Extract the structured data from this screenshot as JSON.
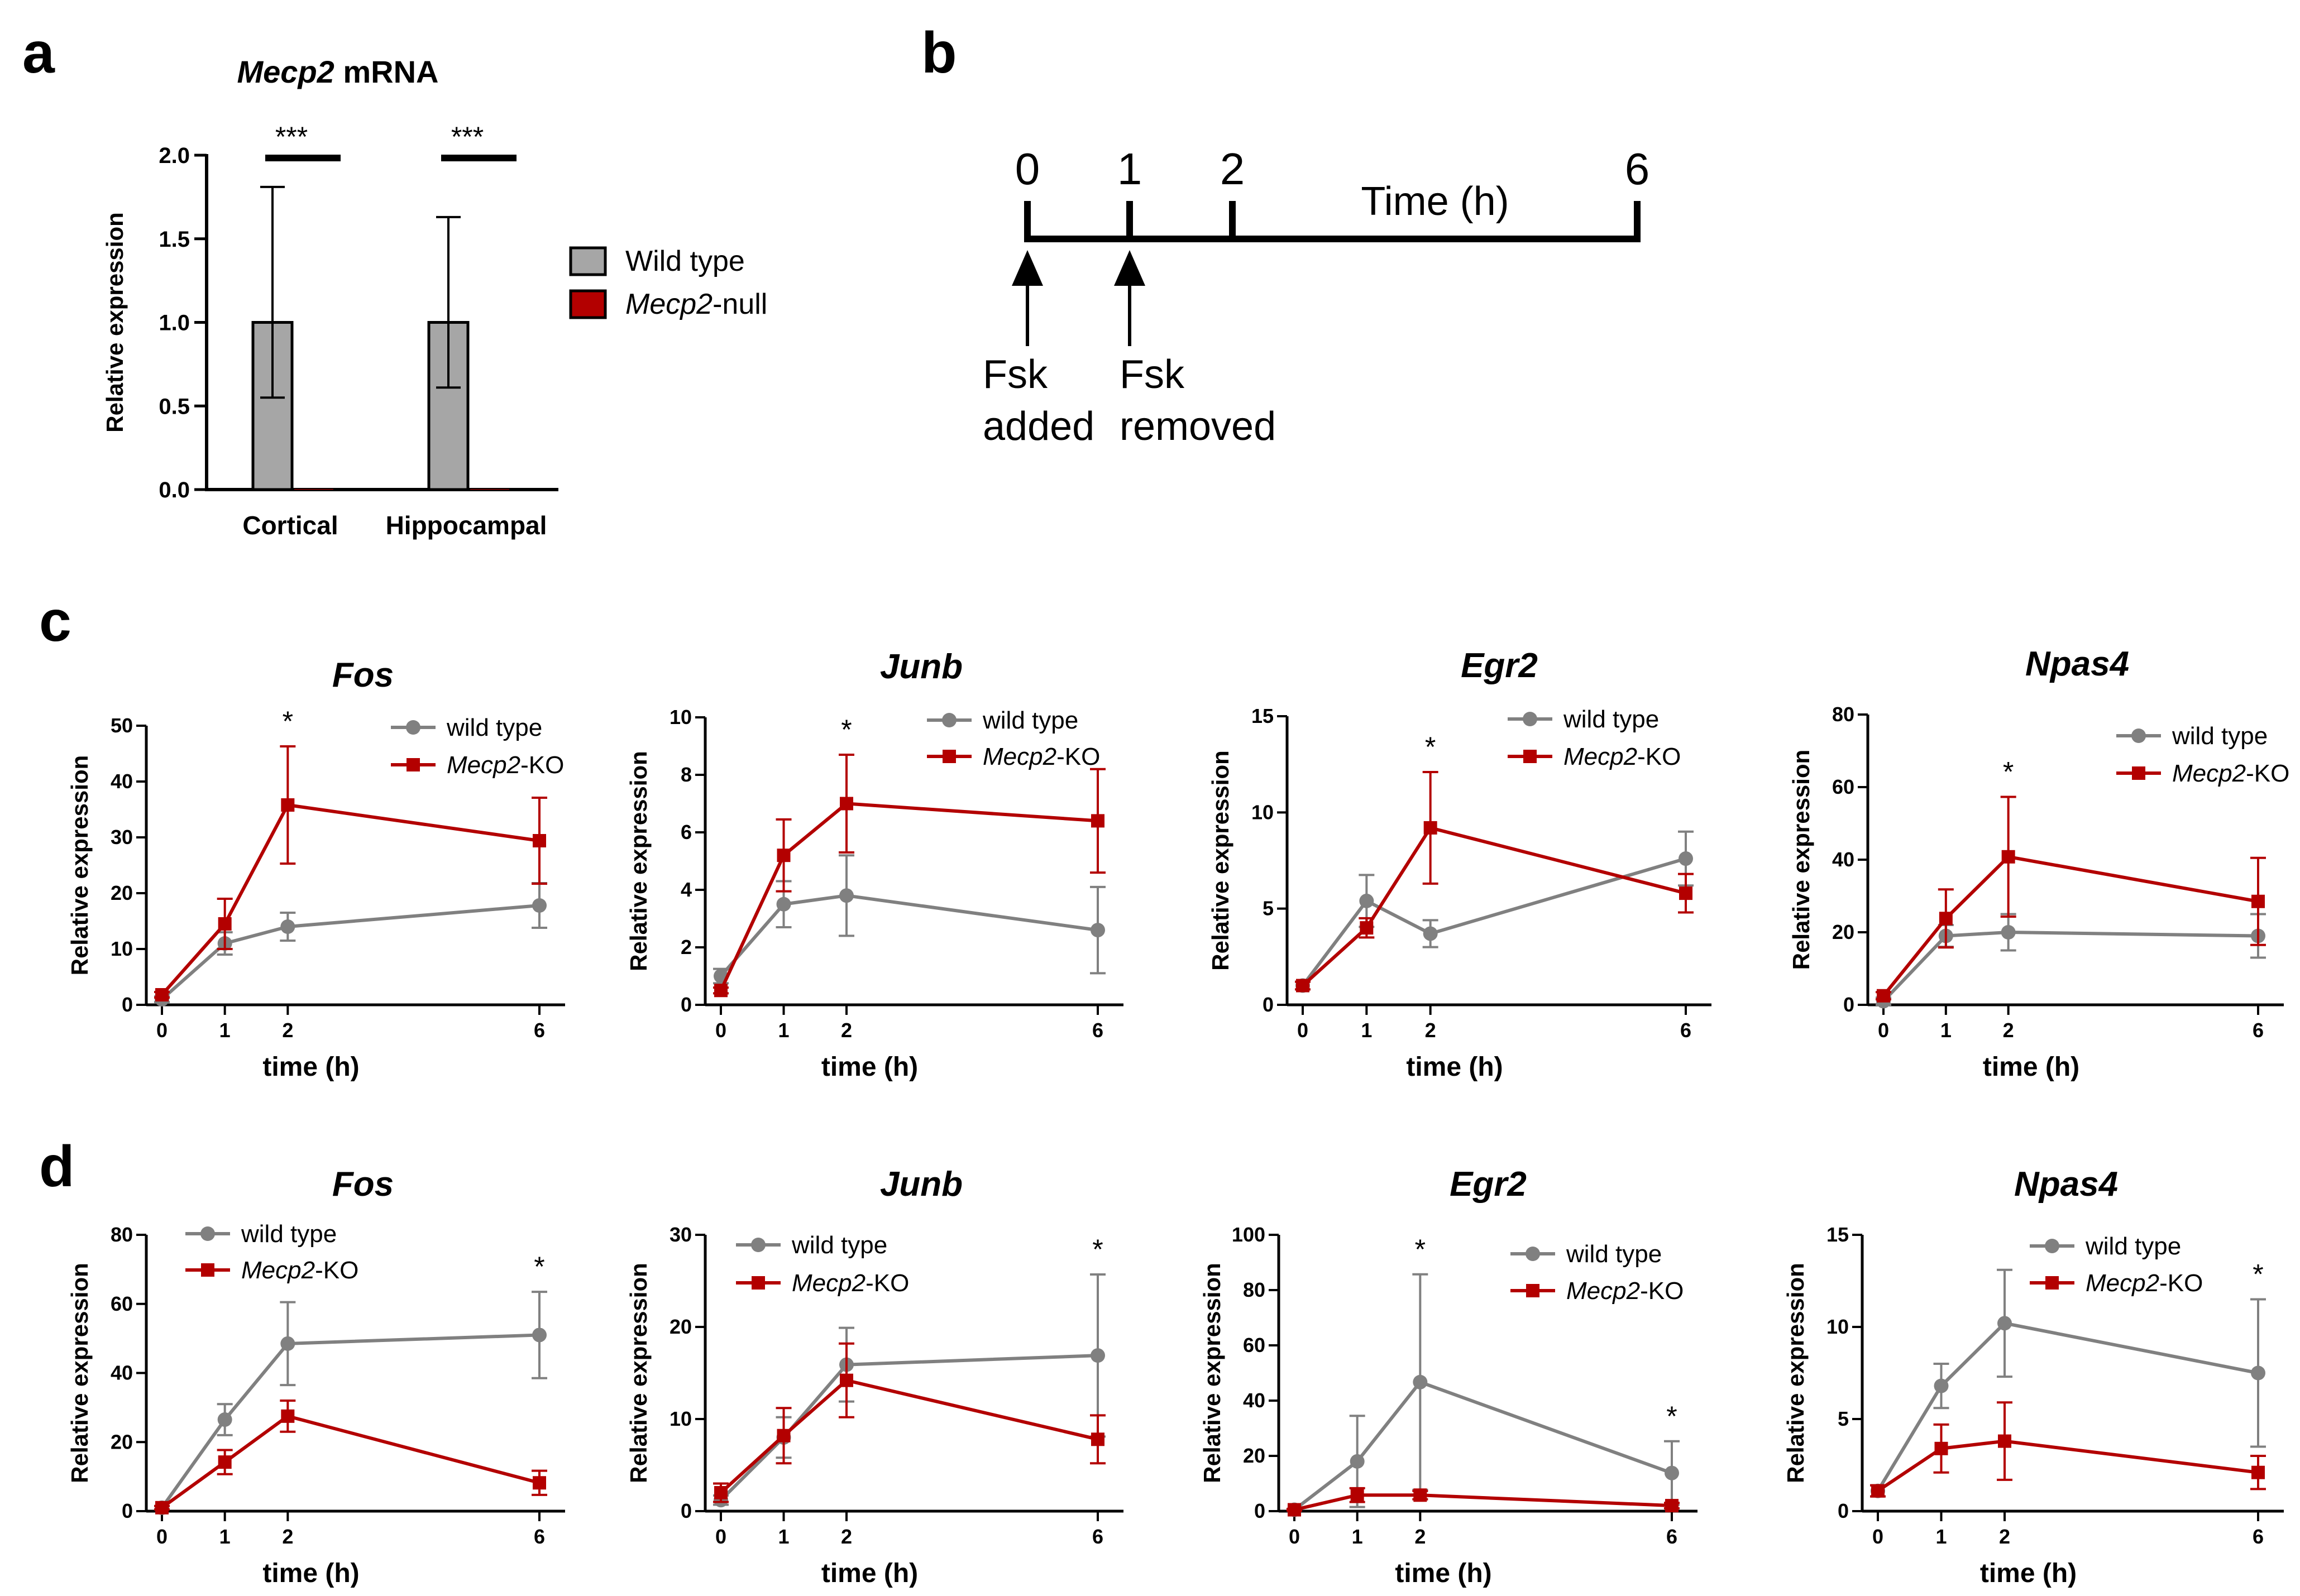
{
  "panel_a": {
    "letter": "a",
    "title_italic": "Mecp2",
    "title_rest": " mRNA",
    "ylabel": "Relative expression",
    "legend": [
      {
        "label": "Wild type",
        "color": "#a6a6a6"
      },
      {
        "label_italic": "Mecp2",
        "label_rest": "-null",
        "color": "#b30000"
      }
    ],
    "significance": [
      "***",
      "***"
    ]
  },
  "panel_b": {
    "letter": "b",
    "time_points": [
      "0",
      "1",
      "2",
      "6"
    ],
    "axis_label": "Time (h)",
    "arrow_labels": [
      {
        "line1": "Fsk",
        "line2": "added"
      },
      {
        "line1": "Fsk",
        "line2": "removed"
      }
    ]
  },
  "panel_c": {
    "letter": "c"
  },
  "panel_d": {
    "letter": "d"
  },
  "colors": {
    "wild_type": "#808080",
    "ko": "#b30000",
    "bar_wt": "#a6a6a6"
  },
  "chart_data": [
    {
      "id": "a",
      "type": "bar",
      "title": "Mecp2 mRNA",
      "categories": [
        "Cortical",
        "Hippocampal"
      ],
      "ylabel": "Relative expression",
      "xlabel": "",
      "ylim": [
        0,
        2.0
      ],
      "yticks": [
        "0.0",
        "0.5",
        "1.0",
        "1.5",
        "2.0"
      ],
      "series": [
        {
          "name": "Wild type",
          "values": [
            1.0,
            1.0
          ],
          "err_low": [
            0.55,
            0.61
          ],
          "err_high": [
            1.81,
            1.63
          ]
        },
        {
          "name": "Mecp2-null",
          "values": [
            0.0,
            0.0
          ]
        }
      ],
      "annotations": [
        "***",
        "***"
      ]
    },
    {
      "id": "c1",
      "type": "line",
      "title": "Fos",
      "x": [
        0,
        1,
        2,
        6
      ],
      "xticks": [
        "0",
        "1",
        "2",
        "6"
      ],
      "xlabel": "time (h)",
      "ylabel": "Relative expression",
      "ylim": [
        0,
        50
      ],
      "yticks": [
        "0",
        "10",
        "20",
        "30",
        "40",
        "50"
      ],
      "legend_x": "top-right",
      "series": [
        {
          "name": "wild type",
          "values": [
            1,
            11,
            14,
            17.8
          ],
          "err": [
            0.5,
            2,
            2.5,
            4
          ]
        },
        {
          "name": "Mecp2-KO",
          "values": [
            1.8,
            14.5,
            35.8,
            29.4
          ],
          "err": [
            0.5,
            4.5,
            10.5,
            7.7
          ]
        }
      ],
      "stars": [
        {
          "x": 2,
          "label": "*"
        }
      ]
    },
    {
      "id": "c2",
      "type": "line",
      "title": "Junb",
      "x": [
        0,
        1,
        2,
        6
      ],
      "xticks": [
        "0",
        "1",
        "2",
        "6"
      ],
      "xlabel": "time (h)",
      "ylabel": "Relative expression",
      "ylim": [
        0,
        10
      ],
      "yticks": [
        "0",
        "2",
        "4",
        "6",
        "8",
        "10"
      ],
      "series": [
        {
          "name": "wild type",
          "values": [
            1.0,
            3.5,
            3.8,
            2.6
          ],
          "err": [
            0.25,
            0.8,
            1.4,
            1.5
          ]
        },
        {
          "name": "Mecp2-KO",
          "values": [
            0.5,
            5.2,
            7.0,
            6.4
          ],
          "err": [
            0.1,
            1.25,
            1.7,
            1.8
          ]
        }
      ],
      "stars": [
        {
          "x": 2,
          "label": "*"
        }
      ]
    },
    {
      "id": "c3",
      "type": "line",
      "title": "Egr2",
      "x": [
        0,
        1,
        2,
        6
      ],
      "xticks": [
        "0",
        "1",
        "2",
        "6"
      ],
      "xlabel": "time (h)",
      "ylabel": "Relative expression",
      "ylim": [
        0,
        15
      ],
      "yticks": [
        "0",
        "5",
        "10",
        "15"
      ],
      "series": [
        {
          "name": "wild type",
          "values": [
            1.0,
            5.4,
            3.7,
            7.6
          ],
          "err": [
            0.2,
            1.35,
            0.7,
            1.4
          ]
        },
        {
          "name": "Mecp2-KO",
          "values": [
            1.0,
            4.0,
            9.2,
            5.8
          ],
          "err": [
            0.2,
            0.5,
            2.9,
            1.0
          ]
        }
      ],
      "stars": [
        {
          "x": 2,
          "label": "*"
        }
      ]
    },
    {
      "id": "c4",
      "type": "line",
      "title": "Npas4",
      "x": [
        0,
        1,
        2,
        6
      ],
      "xticks": [
        "0",
        "1",
        "2",
        "6"
      ],
      "xlabel": "time (h)",
      "ylabel": "Relative expression",
      "ylim": [
        0,
        80
      ],
      "yticks": [
        "0",
        "20",
        "40",
        "60",
        "80"
      ],
      "series": [
        {
          "name": "wild type",
          "values": [
            1,
            19,
            20,
            19
          ],
          "err": [
            1,
            3,
            5,
            6
          ]
        },
        {
          "name": "Mecp2-KO",
          "values": [
            2.5,
            23.8,
            40.8,
            28.5
          ],
          "err": [
            1,
            8,
            16.5,
            12
          ]
        }
      ],
      "stars": [
        {
          "x": 2,
          "label": "*"
        }
      ]
    },
    {
      "id": "d1",
      "type": "line",
      "title": "Fos",
      "x": [
        0,
        1,
        2,
        6
      ],
      "xticks": [
        "0",
        "1",
        "2",
        "6"
      ],
      "xlabel": "time (h)",
      "ylabel": "Relative expression",
      "ylim": [
        0,
        80
      ],
      "yticks": [
        "0",
        "20",
        "40",
        "60",
        "80"
      ],
      "series": [
        {
          "name": "wild type",
          "values": [
            1,
            26.5,
            48.5,
            51
          ],
          "err": [
            0.5,
            4.5,
            12,
            12.5
          ]
        },
        {
          "name": "Mecp2-KO",
          "values": [
            1,
            14.2,
            27.5,
            8.2
          ],
          "err": [
            0.5,
            3.5,
            4.5,
            3.5
          ]
        }
      ],
      "stars": [
        {
          "x": 6,
          "label": "*"
        }
      ]
    },
    {
      "id": "d2",
      "type": "line",
      "title": "Junb",
      "x": [
        0,
        1,
        2,
        6
      ],
      "xticks": [
        "0",
        "1",
        "2",
        "6"
      ],
      "xlabel": "time (h)",
      "ylabel": "Relative expression",
      "ylim": [
        0,
        30
      ],
      "yticks": [
        "0",
        "10",
        "20",
        "30"
      ],
      "series": [
        {
          "name": "wild type",
          "values": [
            1.2,
            8.0,
            15.9,
            16.9
          ],
          "err": [
            0.5,
            2.2,
            4.0,
            8.8
          ]
        },
        {
          "name": "Mecp2-KO",
          "values": [
            2.0,
            8.2,
            14.2,
            7.8
          ],
          "err": [
            1.0,
            3.0,
            4.0,
            2.6
          ]
        }
      ],
      "stars": [
        {
          "x": 6,
          "label": "*"
        }
      ]
    },
    {
      "id": "d3",
      "type": "line",
      "title": "Egr2",
      "x": [
        0,
        1,
        2,
        6
      ],
      "xticks": [
        "0",
        "1",
        "2",
        "6"
      ],
      "xlabel": "time (h)",
      "ylabel": "Relative expression",
      "ylim": [
        0,
        100
      ],
      "yticks": [
        "0",
        "20",
        "40",
        "60",
        "80",
        "100"
      ],
      "series": [
        {
          "name": "wild type",
          "values": [
            0.5,
            18.0,
            46.7,
            13.8
          ],
          "err": [
            0.3,
            16.5,
            39,
            11.5
          ]
        },
        {
          "name": "Mecp2-KO",
          "values": [
            0.5,
            5.8,
            5.8,
            2.0
          ],
          "err": [
            0.3,
            2.5,
            1.5,
            1.0
          ]
        }
      ],
      "stars": [
        {
          "x": 2,
          "label": "*"
        },
        {
          "x": 6,
          "label": "*"
        }
      ]
    },
    {
      "id": "d4",
      "type": "line",
      "title": "Npas4",
      "x": [
        0,
        1,
        2,
        6
      ],
      "xticks": [
        "0",
        "1",
        "2",
        "6"
      ],
      "xlabel": "time (h)",
      "ylabel": "Relative expression",
      "ylim": [
        0,
        15
      ],
      "yticks": [
        "0",
        "5",
        "10",
        "15"
      ],
      "series": [
        {
          "name": "wild type",
          "values": [
            1.1,
            6.8,
            10.2,
            7.5
          ],
          "err": [
            0.3,
            1.2,
            2.9,
            4.0
          ]
        },
        {
          "name": "Mecp2-KO",
          "values": [
            1.1,
            3.4,
            3.8,
            2.1
          ],
          "err": [
            0.3,
            1.3,
            2.1,
            0.9
          ]
        }
      ],
      "stars": [
        {
          "x": 6,
          "label": "*"
        }
      ]
    }
  ]
}
